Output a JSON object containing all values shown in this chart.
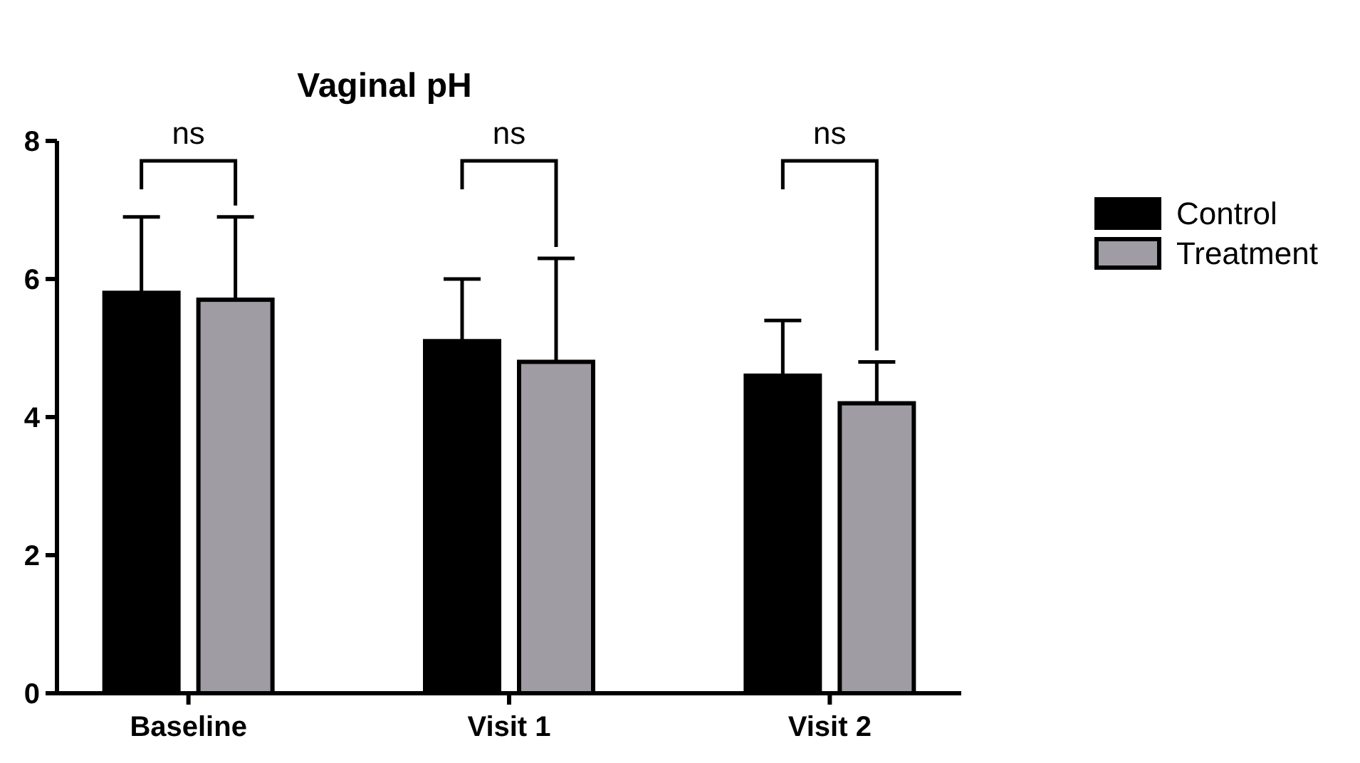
{
  "chart_data": {
    "type": "bar",
    "title": "Vaginal pH",
    "categories": [
      "Baseline",
      "Visit 1",
      "Visit 2"
    ],
    "series": [
      {
        "name": "Control",
        "color": "#000000",
        "values": [
          5.8,
          5.1,
          4.6
        ],
        "errors": [
          [
            5.8,
            6.9
          ],
          [
            5.1,
            6.0
          ],
          [
            4.6,
            5.4
          ]
        ]
      },
      {
        "name": "Treatment",
        "color": "#a09ca3",
        "values": [
          5.7,
          4.8,
          4.2
        ],
        "errors": [
          [
            5.7,
            6.9
          ],
          [
            4.8,
            6.3
          ],
          [
            4.2,
            4.8
          ]
        ]
      }
    ],
    "ylim": [
      0,
      8
    ],
    "yticks": [
      0,
      2,
      4,
      6,
      8
    ],
    "grid": false,
    "legend": "right",
    "annotations": [
      "ns",
      "ns",
      "ns"
    ]
  }
}
